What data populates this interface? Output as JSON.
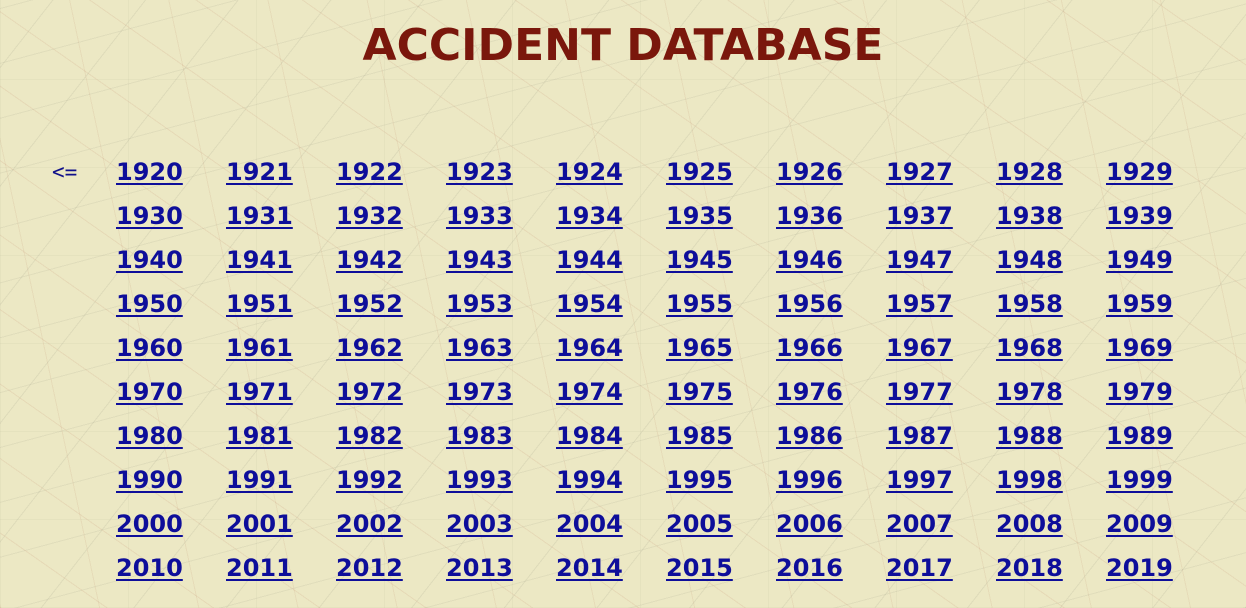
{
  "page": {
    "title": "ACCIDENT DATABASE",
    "prev_label": "<=",
    "colors": {
      "title": "#7a170c",
      "link": "#0e0e9a",
      "background": "#ece8c4"
    }
  },
  "years": [
    "1920",
    "1921",
    "1922",
    "1923",
    "1924",
    "1925",
    "1926",
    "1927",
    "1928",
    "1929",
    "1930",
    "1931",
    "1932",
    "1933",
    "1934",
    "1935",
    "1936",
    "1937",
    "1938",
    "1939",
    "1940",
    "1941",
    "1942",
    "1943",
    "1944",
    "1945",
    "1946",
    "1947",
    "1948",
    "1949",
    "1950",
    "1951",
    "1952",
    "1953",
    "1954",
    "1955",
    "1956",
    "1957",
    "1958",
    "1959",
    "1960",
    "1961",
    "1962",
    "1963",
    "1964",
    "1965",
    "1966",
    "1967",
    "1968",
    "1969",
    "1970",
    "1971",
    "1972",
    "1973",
    "1974",
    "1975",
    "1976",
    "1977",
    "1978",
    "1979",
    "1980",
    "1981",
    "1982",
    "1983",
    "1984",
    "1985",
    "1986",
    "1987",
    "1988",
    "1989",
    "1990",
    "1991",
    "1992",
    "1993",
    "1994",
    "1995",
    "1996",
    "1997",
    "1998",
    "1999",
    "2000",
    "2001",
    "2002",
    "2003",
    "2004",
    "2005",
    "2006",
    "2007",
    "2008",
    "2009",
    "2010",
    "2011",
    "2012",
    "2013",
    "2014",
    "2015",
    "2016",
    "2017",
    "2018",
    "2019"
  ]
}
